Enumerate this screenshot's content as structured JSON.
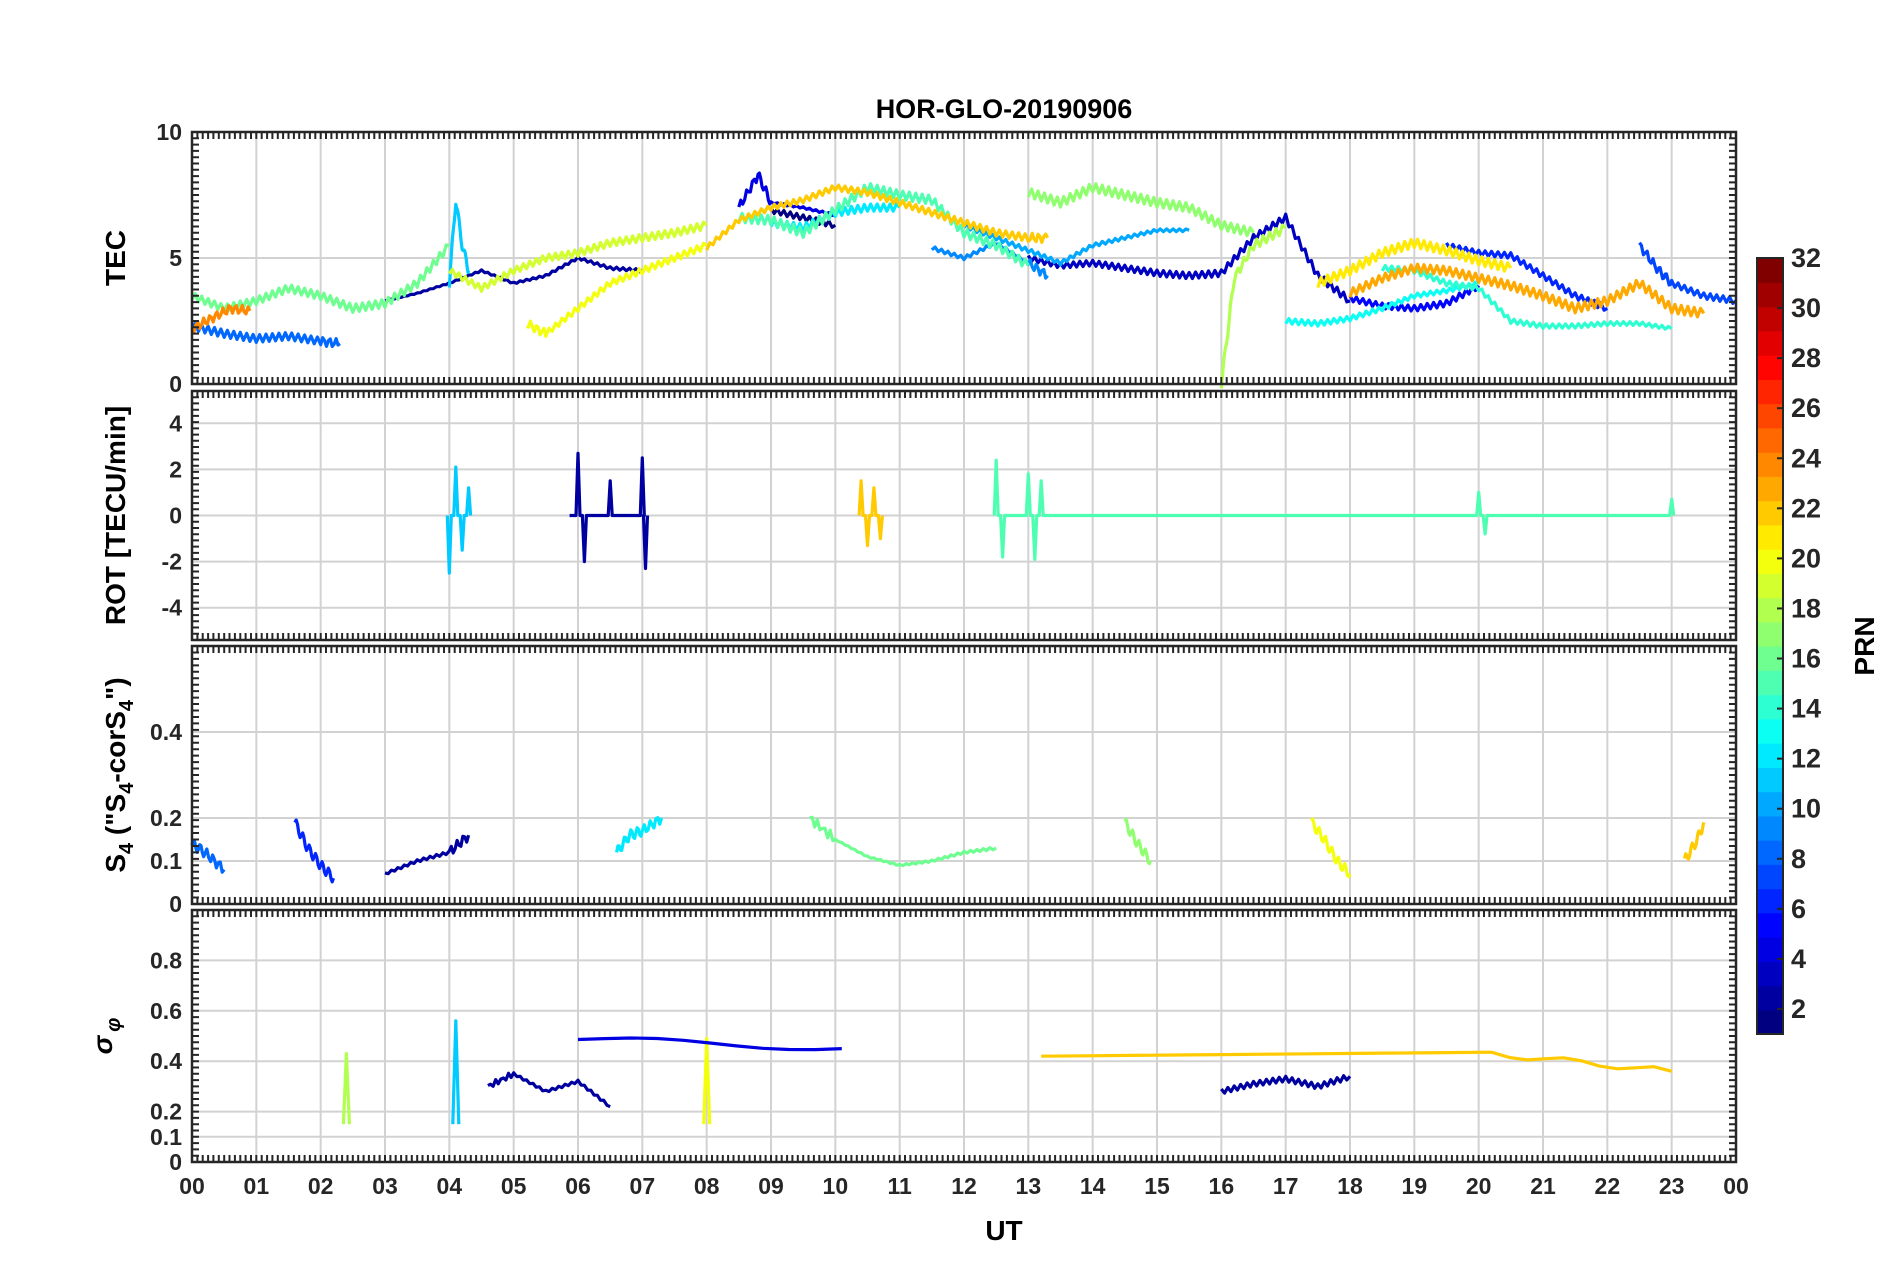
{
  "chart_data": {
    "type": "line",
    "title": "HOR-GLO-20190906",
    "xlabel": "UT",
    "x_tick_labels": [
      "00",
      "01",
      "02",
      "03",
      "04",
      "05",
      "06",
      "07",
      "08",
      "09",
      "10",
      "11",
      "12",
      "13",
      "14",
      "15",
      "16",
      "17",
      "18",
      "19",
      "20",
      "21",
      "22",
      "23",
      "00"
    ],
    "xlim": [
      0,
      24
    ],
    "colorbar": {
      "label": "PRN",
      "range": [
        1,
        32
      ],
      "tick_labels": [
        "2",
        "4",
        "6",
        "8",
        "10",
        "12",
        "14",
        "16",
        "18",
        "20",
        "22",
        "24",
        "26",
        "28",
        "30",
        "32"
      ],
      "colormap": "jet"
    },
    "panels": [
      {
        "id": "tec",
        "ylabel": "TEC",
        "ylim": [
          0,
          10
        ],
        "y_ticks": [
          0,
          5,
          10
        ],
        "y_tick_labels": [
          "0",
          "5",
          "10"
        ],
        "series": [
          {
            "name": "PRN 1",
            "prn": 1,
            "x": [
              9.0,
              9.5,
              10.0
            ],
            "values": [
              6.9,
              6.6,
              6.3
            ]
          },
          {
            "name": "PRN 2",
            "prn": 2,
            "x": [
              3.0,
              3.5,
              4.0,
              4.5,
              5.0,
              5.5,
              6.0,
              6.5,
              7.0
            ],
            "values": [
              3.3,
              3.6,
              4.0,
              4.5,
              4.0,
              4.3,
              5.0,
              4.6,
              4.5
            ]
          },
          {
            "name": "PRN 3",
            "prn": 3,
            "x": [
              13.0,
              13.5,
              14.0,
              14.5,
              15.0,
              15.5,
              16.0,
              16.5,
              17.0,
              17.5,
              18.0
            ],
            "values": [
              5.0,
              4.7,
              4.8,
              4.6,
              4.4,
              4.3,
              4.4,
              5.8,
              6.6,
              4.3,
              3.3
            ]
          },
          {
            "name": "PRN 4",
            "prn": 4,
            "x": [
              8.5,
              8.8,
              9.0,
              9.5,
              10.0
            ],
            "values": [
              7.0,
              8.3,
              7.2,
              7.0,
              6.7
            ]
          },
          {
            "name": "PRN 5",
            "prn": 5,
            "x": [
              18.0,
              18.5,
              19.0,
              19.5,
              20.0
            ],
            "values": [
              3.4,
              3.1,
              3.0,
              3.2,
              3.9
            ]
          },
          {
            "name": "PRN 6",
            "prn": 6,
            "x": [
              19.5,
              20.0,
              20.5,
              21.0,
              21.5,
              22.0
            ],
            "values": [
              5.5,
              5.2,
              5.1,
              4.3,
              3.5,
              3.0
            ]
          },
          {
            "name": "PRN 7",
            "prn": 7,
            "x": [
              22.5,
              22.8,
              23.0,
              23.5,
              24.0
            ],
            "values": [
              5.5,
              4.5,
              4.0,
              3.5,
              3.3
            ]
          },
          {
            "name": "PRN 8",
            "prn": 8,
            "x": [
              0.0,
              0.5,
              1.0,
              1.5,
              2.0,
              2.3
            ],
            "values": [
              2.3,
              2.0,
              1.8,
              1.9,
              1.7,
              1.6
            ]
          },
          {
            "name": "PRN 9",
            "prn": 9,
            "x": [
              11.5,
              12.0,
              12.5,
              13.0,
              13.3
            ],
            "values": [
              5.4,
              5.0,
              5.6,
              4.8,
              4.3
            ]
          },
          {
            "name": "PRN 10",
            "prn": 10,
            "x": [
              12.0,
              12.5,
              13.0,
              13.5,
              14.0,
              14.5,
              15.0,
              15.5
            ],
            "values": [
              6.3,
              5.8,
              5.3,
              4.8,
              5.5,
              5.8,
              6.1,
              6.1
            ]
          },
          {
            "name": "PRN 11",
            "prn": 11,
            "x": [
              4.0,
              4.1,
              4.2,
              4.3
            ],
            "values": [
              4.0,
              7.3,
              5.5,
              4.5
            ]
          },
          {
            "name": "PRN 12",
            "prn": 12,
            "x": [
              9.0,
              9.5,
              10.0,
              10.5,
              11.0
            ],
            "values": [
              6.4,
              6.2,
              6.8,
              7.0,
              7.0
            ]
          },
          {
            "name": "PRN 13",
            "prn": 13,
            "x": [
              17.0,
              17.5,
              18.0,
              18.5,
              19.0,
              19.5,
              20.0
            ],
            "values": [
              2.5,
              2.4,
              2.6,
              3.0,
              3.5,
              3.7,
              4.0
            ]
          },
          {
            "name": "PRN 14",
            "prn": 14,
            "x": [
              18.5,
              19.0,
              19.5,
              20.0,
              20.5,
              21.0,
              21.5,
              22.0,
              22.5,
              23.0
            ],
            "values": [
              4.6,
              4.5,
              4.0,
              3.8,
              2.5,
              2.3,
              2.3,
              2.4,
              2.4,
              2.2
            ]
          },
          {
            "name": "PRN 15",
            "prn": 15,
            "x": [
              8.5,
              9.0,
              9.5,
              10.0,
              10.5,
              11.0,
              11.5,
              12.0,
              12.5,
              13.0
            ],
            "values": [
              6.6,
              6.5,
              6.0,
              6.9,
              7.8,
              7.5,
              7.3,
              6.0,
              5.5,
              4.7
            ]
          },
          {
            "name": "PRN 16",
            "prn": 16,
            "x": [
              0.0,
              0.5,
              1.0,
              1.5,
              2.0,
              2.5,
              3.0,
              3.5,
              4.0
            ],
            "values": [
              3.5,
              3.0,
              3.3,
              3.8,
              3.5,
              3.0,
              3.2,
              4.0,
              5.5
            ]
          },
          {
            "name": "PRN 17",
            "prn": 17,
            "x": [
              13.0,
              13.5,
              14.0,
              14.5,
              15.0,
              15.5,
              16.0,
              16.5
            ],
            "values": [
              7.6,
              7.2,
              7.8,
              7.5,
              7.2,
              7.0,
              6.3,
              6.0
            ]
          },
          {
            "name": "PRN 18",
            "prn": 18,
            "x": [
              16.0,
              16.2,
              16.5,
              17.0
            ],
            "values": [
              0.0,
              4.2,
              5.5,
              6.2
            ]
          },
          {
            "name": "PRN 19",
            "prn": 19,
            "x": [
              4.0,
              4.5,
              5.0,
              5.5,
              6.0,
              6.5,
              7.0,
              7.5,
              8.0
            ],
            "values": [
              4.5,
              3.8,
              4.5,
              5.0,
              5.2,
              5.6,
              5.8,
              6.0,
              6.3
            ]
          },
          {
            "name": "PRN 20",
            "prn": 20,
            "x": [
              5.2,
              5.5,
              6.0,
              6.5,
              7.0,
              7.5,
              8.0
            ],
            "values": [
              2.4,
              2.0,
              3.0,
              4.0,
              4.5,
              5.0,
              5.5
            ]
          },
          {
            "name": "PRN 21",
            "prn": 21,
            "x": [
              17.5,
              18.0,
              18.5,
              19.0,
              19.5,
              20.0,
              20.5
            ],
            "values": [
              4.0,
              4.5,
              5.2,
              5.6,
              5.3,
              4.9,
              4.6
            ]
          },
          {
            "name": "PRN 22",
            "prn": 22,
            "x": [
              8.0,
              8.5,
              9.0,
              9.5,
              10.0,
              10.5,
              11.0,
              11.5,
              12.0,
              12.5,
              13.0,
              13.3
            ],
            "values": [
              5.4,
              6.5,
              7.0,
              7.3,
              7.8,
              7.6,
              7.2,
              6.8,
              6.4,
              6.0,
              5.8,
              5.8
            ]
          },
          {
            "name": "PRN 23",
            "prn": 23,
            "x": [
              18.0,
              18.5,
              19.0,
              19.5,
              20.0,
              20.5,
              21.0,
              21.5,
              22.0,
              22.5,
              23.0,
              23.5
            ],
            "values": [
              3.6,
              4.2,
              4.6,
              4.5,
              4.2,
              3.9,
              3.5,
              3.0,
              3.3,
              4.0,
              3.0,
              2.8
            ]
          },
          {
            "name": "PRN 24",
            "prn": 24,
            "x": [
              0.0,
              0.3,
              0.6,
              0.9
            ],
            "values": [
              2.2,
              2.6,
              3.0,
              2.9
            ]
          }
        ]
      },
      {
        "id": "rot",
        "ylabel": "ROT [TECU/min]",
        "ylim": [
          -5.4,
          5.4
        ],
        "y_ticks": [
          -4,
          -2,
          0,
          2,
          4
        ],
        "y_tick_labels": [
          "-4",
          "-2",
          "0",
          "2",
          "4"
        ],
        "series": [
          {
            "name": "PRN 2 spikes",
            "prn": 2,
            "x": [
              5.9,
              6.0,
              6.1,
              6.5,
              6.9,
              7.0,
              7.05
            ],
            "values": [
              0.0,
              2.7,
              -2.0,
              1.5,
              0.0,
              2.5,
              -2.3
            ]
          },
          {
            "name": "PRN 11 spikes",
            "prn": 11,
            "x": [
              4.0,
              4.1,
              4.2,
              4.3
            ],
            "values": [
              -2.5,
              2.1,
              -1.5,
              1.2
            ]
          },
          {
            "name": "PRN 15 spikes",
            "prn": 15,
            "x": [
              12.5,
              12.6,
              13.0,
              13.1,
              13.2,
              20.0,
              20.1,
              23.0
            ],
            "values": [
              2.4,
              -1.8,
              1.8,
              -1.9,
              1.5,
              1.0,
              -0.8,
              0.7
            ]
          },
          {
            "name": "PRN 22 spikes",
            "prn": 22,
            "x": [
              10.4,
              10.5,
              10.6,
              10.7
            ],
            "values": [
              1.5,
              -1.3,
              1.2,
              -1.0
            ]
          }
        ]
      },
      {
        "id": "s4",
        "ylabel": "S4 (\"S4-corS4\")",
        "ylabel_parts": [
          "S",
          "4",
          " (\"S",
          "4",
          "-corS",
          "4",
          "\")"
        ],
        "ylim": [
          0,
          0.6
        ],
        "y_ticks": [
          0,
          0.1,
          0.2,
          0.4
        ],
        "y_tick_labels": [
          "0",
          "0.1",
          "0.2",
          "0.4"
        ],
        "series": [
          {
            "name": "PRN 2",
            "prn": 2,
            "x": [
              3.0,
              3.5,
              4.0,
              4.3
            ],
            "values": [
              0.07,
              0.1,
              0.12,
              0.16
            ]
          },
          {
            "name": "PRN 6",
            "prn": 6,
            "x": [
              1.6,
              1.8,
              2.0,
              2.2
            ],
            "values": [
              0.19,
              0.13,
              0.09,
              0.06
            ]
          },
          {
            "name": "PRN 8",
            "prn": 8,
            "x": [
              0.0,
              0.2,
              0.5
            ],
            "values": [
              0.14,
              0.12,
              0.08
            ]
          },
          {
            "name": "PRN 12",
            "prn": 12,
            "x": [
              6.6,
              6.8,
              7.0,
              7.3
            ],
            "values": [
              0.12,
              0.16,
              0.17,
              0.2
            ]
          },
          {
            "name": "PRN 16",
            "prn": 16,
            "x": [
              9.6,
              10.0,
              10.5,
              11.0,
              11.5,
              12.0,
              12.5
            ],
            "values": [
              0.2,
              0.15,
              0.11,
              0.09,
              0.1,
              0.12,
              0.13
            ]
          },
          {
            "name": "PRN 17",
            "prn": 17,
            "x": [
              14.5,
              14.7,
              14.9
            ],
            "values": [
              0.19,
              0.14,
              0.1
            ]
          },
          {
            "name": "PRN 20",
            "prn": 20,
            "x": [
              17.4,
              17.6,
              17.8,
              18.0
            ],
            "values": [
              0.19,
              0.15,
              0.1,
              0.07
            ]
          },
          {
            "name": "PRN 22",
            "prn": 22,
            "x": [
              23.2,
              23.4,
              23.5
            ],
            "values": [
              0.1,
              0.15,
              0.19
            ]
          }
        ]
      },
      {
        "id": "sigma",
        "ylabel": "σ φ",
        "ylabel_parts": [
          "σ",
          "φ"
        ],
        "ylim": [
          0,
          1
        ],
        "y_ticks": [
          0,
          0.1,
          0.2,
          0.4,
          0.6,
          0.8
        ],
        "y_tick_labels": [
          "0",
          "0.1",
          "0.2",
          "0.4",
          "0.6",
          "0.8"
        ],
        "series": [
          {
            "name": "PRN 2",
            "prn": 2,
            "x": [
              4.6,
              5.0,
              5.5,
              6.0,
              6.5
            ],
            "values": [
              0.3,
              0.35,
              0.28,
              0.32,
              0.22
            ]
          },
          {
            "name": "PRN 2 (16-18 UT)",
            "prn": 2,
            "x": [
              16.0,
              16.5,
              17.0,
              17.5,
              18.0
            ],
            "values": [
              0.28,
              0.31,
              0.33,
              0.3,
              0.34
            ]
          },
          {
            "name": "PRN 11",
            "prn": 11,
            "x": [
              4.1
            ],
            "values": [
              0.56
            ]
          },
          {
            "name": "PRN 18",
            "prn": 18,
            "x": [
              2.4
            ],
            "values": [
              0.43
            ]
          },
          {
            "name": "PRN 20",
            "prn": 20,
            "x": [
              8.0
            ],
            "values": [
              0.49
            ]
          },
          {
            "name": "PRN 4",
            "prn": 4,
            "x": [
              6.0,
              10.1
            ],
            "values": [
              0.49,
              0.45
            ]
          },
          {
            "name": "PRN 22",
            "prn": 22,
            "x": [
              13.2,
              20.2,
              23.0
            ],
            "values": [
              0.42,
              0.43,
              0.36
            ]
          }
        ]
      }
    ]
  }
}
